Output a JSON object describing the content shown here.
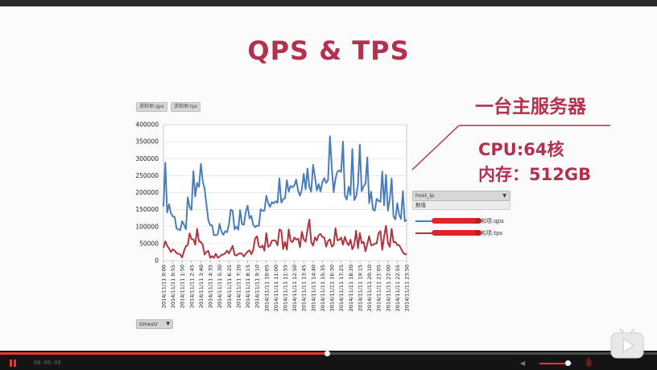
{
  "slide": {
    "title": "QPS & TPS",
    "server_label": "一台主服务器",
    "cpu": "CPU:64核",
    "memory": "内存：512GB"
  },
  "legend_tabs": [
    "求和项:qps",
    "求和项:tps"
  ],
  "right_panel": {
    "dropdown_label": "host_ip",
    "sub_label": "数值",
    "items": [
      {
        "text": "求和项:qps",
        "color": "#4a7ebb"
      },
      {
        "text": "求和项:tps",
        "color": "#b0343f"
      }
    ]
  },
  "bottom_dropdown": "timestr",
  "player": {
    "time": "00:00:00",
    "progress": 0.5
  },
  "colors": {
    "accent": "#b3304f",
    "qps": "#4a7ebb",
    "tps": "#b0343f",
    "progress": "#e23a2f"
  },
  "chart_data": {
    "type": "line",
    "ylim": [
      0,
      400000
    ],
    "yticks": [
      0,
      50000,
      100000,
      150000,
      200000,
      250000,
      300000,
      350000,
      400000
    ],
    "ytick_labels": [
      "0",
      "50000",
      "100000",
      "150000",
      "200000",
      "250000",
      "300000",
      "350000",
      "400000"
    ],
    "categories": [
      "2014/11/11 0:00",
      "2014/11/11 0:55",
      "2014/11/11 1:50",
      "2014/11/11 2:45",
      "2014/11/11 3:40",
      "2014/11/11 4:35",
      "2014/11/11 5:30",
      "2014/11/11 6:25",
      "2014/11/11 7:20",
      "2014/11/11 8:15",
      "2014/11/11 9:10",
      "2014/11/11 10:05",
      "2014/11/11 11:00",
      "2014/11/11 11:55",
      "2014/11/11 12:50",
      "2014/11/11 13:45",
      "2014/11/11 14:40",
      "2014/11/11 15:35",
      "2014/11/11 16:30",
      "2014/11/11 17:25",
      "2014/11/11 18:20",
      "2014/11/11 19:15",
      "2014/11/11 20:10",
      "2014/11/11 21:05",
      "2014/11/11 22:00",
      "2014/11/11 22:55",
      "2014/11/11 23:50"
    ],
    "series": [
      {
        "name": "求和项:qps",
        "values": [
          200000,
          130000,
          75000,
          150000,
          250000,
          110000,
          70000,
          100000,
          85000,
          140000,
          110000,
          160000,
          200000,
          220000,
          230000,
          240000,
          250000,
          240000,
          235000,
          230000,
          210000,
          220000,
          190000,
          175000,
          160000,
          150000,
          120000
        ]
      },
      {
        "name": "求和项:tps",
        "values": [
          50000,
          25000,
          15000,
          70000,
          40000,
          10000,
          12000,
          30000,
          15000,
          20000,
          40000,
          45000,
          55000,
          45000,
          60000,
          70000,
          65000,
          60000,
          55000,
          50000,
          55000,
          45000,
          40000,
          45000,
          60000,
          40000,
          20000
        ]
      }
    ]
  }
}
